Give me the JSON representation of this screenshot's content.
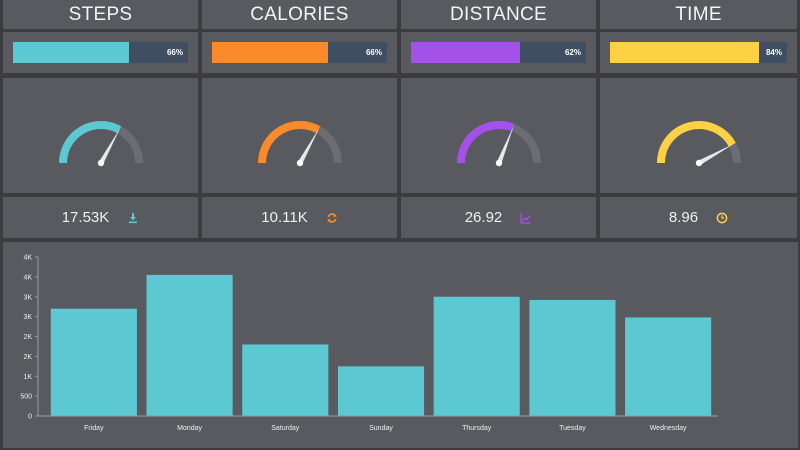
{
  "cards": [
    {
      "key": "steps",
      "title": "STEPS",
      "percent": 66,
      "percent_label": "66%",
      "color": "#5bc8d2",
      "value": "17.53K",
      "icon": "download-icon"
    },
    {
      "key": "calories",
      "title": "CALORIES",
      "percent": 66,
      "percent_label": "66%",
      "color": "#fb8a2a",
      "value": "10.11K",
      "icon": "refresh-icon"
    },
    {
      "key": "distance",
      "title": "DISTANCE",
      "percent": 62,
      "percent_label": "62%",
      "color": "#a451ec",
      "value": "26.92",
      "icon": "line-chart-icon"
    },
    {
      "key": "time",
      "title": "TIME",
      "percent": 84,
      "percent_label": "84%",
      "color": "#fed144",
      "value": "8.96",
      "icon": "clock-icon"
    }
  ],
  "chart_data": {
    "type": "bar",
    "categories": [
      "Friday",
      "Monday",
      "Saturday",
      "Sunday",
      "Thursday",
      "Tuesday",
      "Wednesday"
    ],
    "values": [
      2700,
      3550,
      1800,
      1250,
      3000,
      2920,
      2480
    ],
    "ylim": [
      0,
      4000
    ],
    "yticks": [
      0,
      500,
      1000,
      1500,
      2000,
      2500,
      3000,
      3500,
      4000
    ],
    "ytick_labels": [
      "0",
      "500",
      "1K",
      "2K",
      "2K",
      "3K",
      "3K",
      "4K",
      "4K"
    ],
    "bar_color": "#5bc8d2",
    "grid": false
  }
}
